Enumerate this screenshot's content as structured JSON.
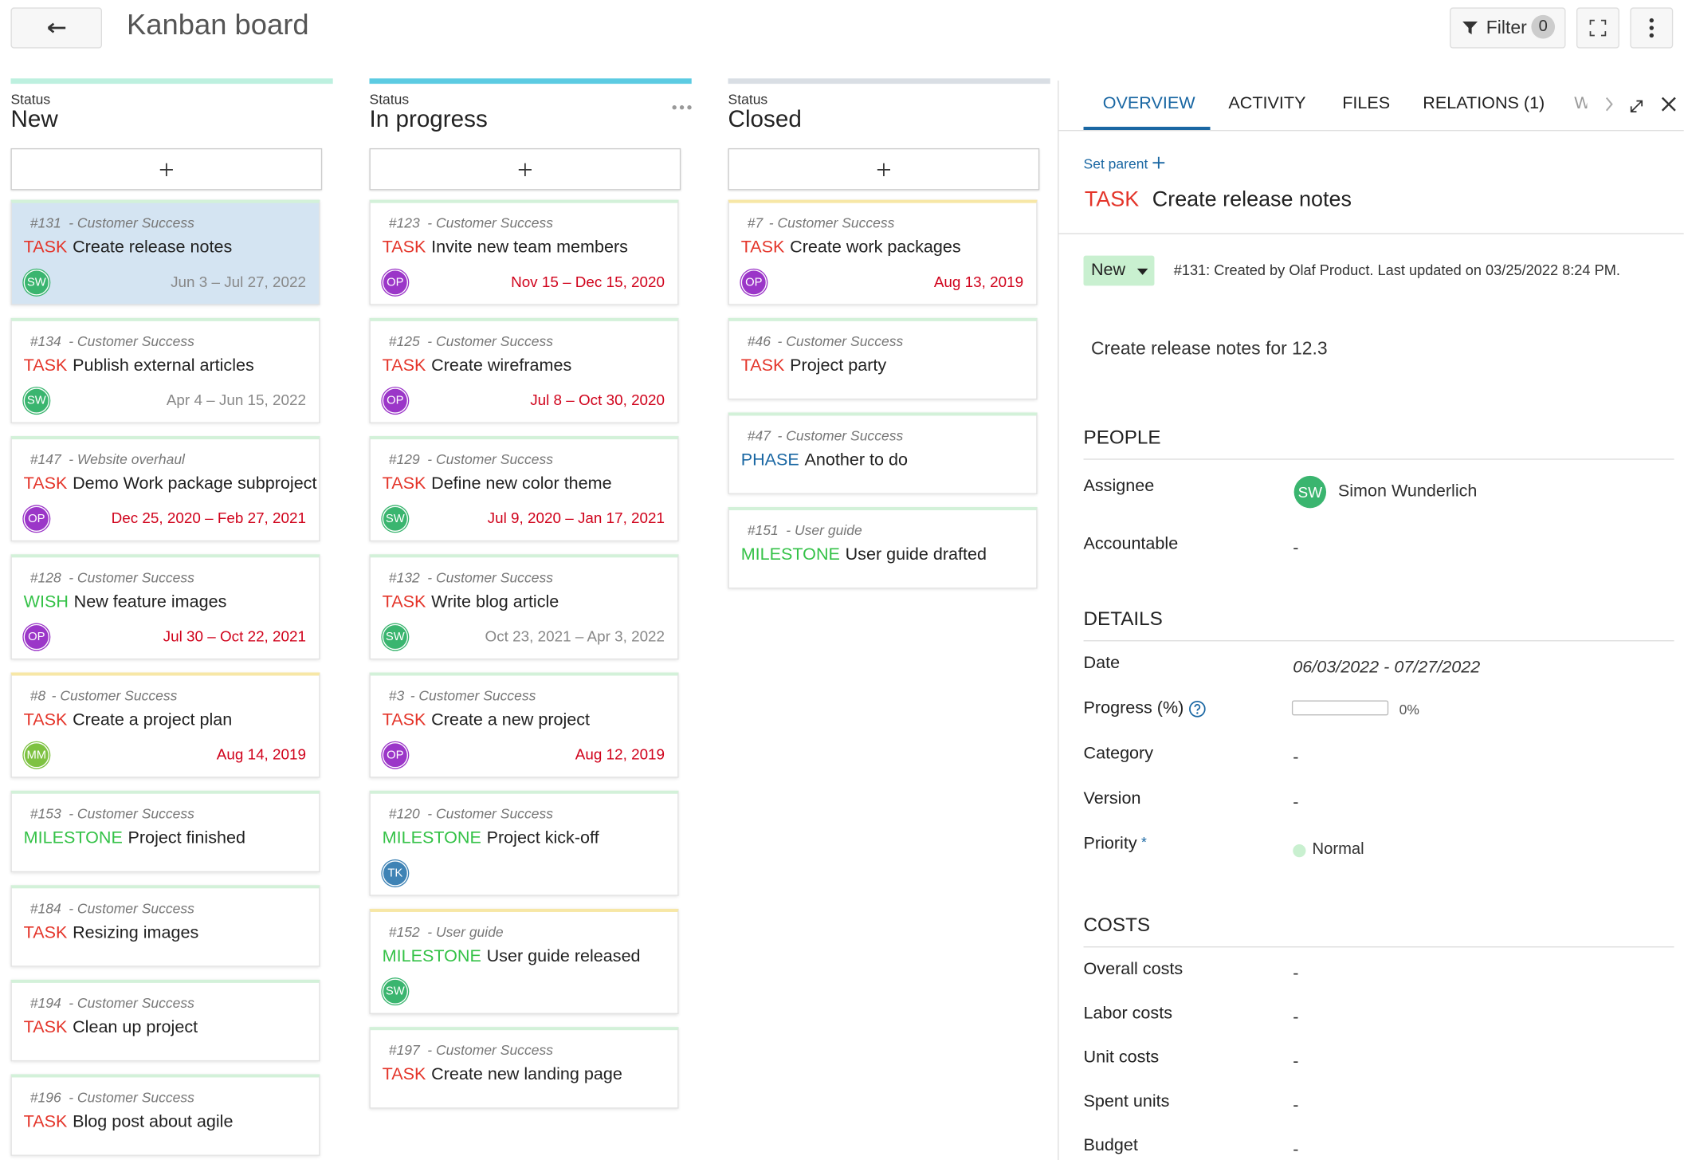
{
  "header": {
    "title": "Kanban board",
    "filter": "Filter",
    "filter_count": "0"
  },
  "columns": [
    {
      "label": "Status",
      "name": "New",
      "color": "#bdf0df",
      "cards": [
        {
          "id": "#131",
          "project": "- Customer Success",
          "type": "TASK",
          "subject": "Create release notes",
          "avatar": "SW",
          "dates": "Jun 3 – Jul 27, 2022",
          "overdue": false,
          "selected": true,
          "accent": "#d3f1d9"
        },
        {
          "id": "#134",
          "project": "- Customer Success",
          "type": "TASK",
          "subject": "Publish external articles",
          "avatar": "SW",
          "dates": "Apr 4 – Jun 15, 2022",
          "overdue": false,
          "accent": "#d3f1d9"
        },
        {
          "id": "#147",
          "project": "- Website overhaul",
          "type": "TASK",
          "subject": "Demo Work package subproject",
          "avatar": "OP",
          "dates": "Dec 25, 2020 – Feb 27, 2021",
          "overdue": true,
          "accent": "#d3f1d9"
        },
        {
          "id": "#128",
          "project": "- Customer Success",
          "type": "WISH",
          "subject": "New feature images",
          "avatar": "OP",
          "dates": "Jul 30 – Oct 22, 2021",
          "overdue": true,
          "accent": "#d3f1d9"
        },
        {
          "id": "#8",
          "project": "- Customer Success",
          "type": "TASK",
          "subject": "Create a project plan",
          "avatar": "MM",
          "dates": "Aug 14, 2019",
          "overdue": true,
          "accent": "#f7e7a6"
        },
        {
          "id": "#153",
          "project": "- Customer Success",
          "type": "MILESTONE",
          "subject": "Project finished",
          "accent": "#d3f1d9"
        },
        {
          "id": "#184",
          "project": "- Customer Success",
          "type": "TASK",
          "subject": "Resizing images",
          "accent": "#d3f1d9"
        },
        {
          "id": "#194",
          "project": "- Customer Success",
          "type": "TASK",
          "subject": "Clean up project",
          "accent": "#d3f1d9"
        },
        {
          "id": "#196",
          "project": "- Customer Success",
          "type": "TASK",
          "subject": "Blog post about agile",
          "accent": "#d3f1d9"
        }
      ]
    },
    {
      "label": "Status",
      "name": "In progress",
      "color": "#5ccbe2",
      "cards": [
        {
          "id": "#123",
          "project": "- Customer Success",
          "type": "TASK",
          "subject": "Invite new team members",
          "avatar": "OP",
          "dates": "Nov 15 – Dec 15, 2020",
          "overdue": true,
          "accent": "#d3f1d9"
        },
        {
          "id": "#125",
          "project": "- Customer Success",
          "type": "TASK",
          "subject": "Create wireframes",
          "avatar": "OP",
          "dates": "Jul 8 – Oct 30, 2020",
          "overdue": true,
          "accent": "#d3f1d9"
        },
        {
          "id": "#129",
          "project": "- Customer Success",
          "type": "TASK",
          "subject": "Define new color theme",
          "avatar": "SW",
          "dates": "Jul 9, 2020 – Jan 17, 2021",
          "overdue": true,
          "accent": "#d3f1d9"
        },
        {
          "id": "#132",
          "project": "- Customer Success",
          "type": "TASK",
          "subject": "Write blog article",
          "avatar": "SW",
          "dates": "Oct 23, 2021 – Apr 3, 2022",
          "overdue": false,
          "accent": "#d3f1d9"
        },
        {
          "id": "#3",
          "project": "- Customer Success",
          "type": "TASK",
          "subject": "Create a new project",
          "avatar": "OP",
          "dates": "Aug 12, 2019",
          "overdue": true,
          "accent": "#d3f1d9"
        },
        {
          "id": "#120",
          "project": "- Customer Success",
          "type": "MILESTONE",
          "subject": "Project kick-off",
          "avatar": "TK",
          "accent": "#d3f1d9"
        },
        {
          "id": "#152",
          "project": "- User guide",
          "type": "MILESTONE",
          "subject": "User guide released",
          "avatar": "SW",
          "accent": "#f7e7a6"
        },
        {
          "id": "#197",
          "project": "- Customer Success",
          "type": "TASK",
          "subject": "Create new landing page",
          "accent": "#d3f1d9"
        }
      ]
    },
    {
      "label": "Status",
      "name": "Closed",
      "color": "#d9dee4",
      "cards": [
        {
          "id": "#7",
          "project": "- Customer Success",
          "type": "TASK",
          "subject": "Create work packages",
          "avatar": "OP",
          "dates": "Aug 13, 2019",
          "overdue": true,
          "accent": "#f7e7a6"
        },
        {
          "id": "#46",
          "project": "- Customer Success",
          "type": "TASK",
          "subject": "Project party",
          "accent": "#d3f1d9"
        },
        {
          "id": "#47",
          "project": "- Customer Success",
          "type": "PHASE",
          "subject": "Another to do",
          "accent": "#d3f1d9"
        },
        {
          "id": "#151",
          "project": "- User guide",
          "type": "MILESTONE",
          "subject": "User guide drafted",
          "accent": "#d3f1d9"
        }
      ]
    }
  ],
  "details": {
    "tabs": [
      "OVERVIEW",
      "ACTIVITY",
      "FILES",
      "RELATIONS (1)",
      "W"
    ],
    "set_parent": "Set parent",
    "type": "TASK",
    "subject": "Create release notes",
    "status": "New",
    "meta": "#131: Created by Olaf Product. Last updated on 03/25/2022 8:24 PM.",
    "description": "Create release notes for 12.3",
    "sections": [
      {
        "title": "PEOPLE",
        "fields": [
          {
            "label": "Assignee",
            "avatar": "SW",
            "value": "Simon Wunderlich"
          },
          {
            "label": "Accountable",
            "value": "-"
          }
        ]
      },
      {
        "title": "DETAILS",
        "fields": [
          {
            "label": "Date",
            "value": "06/03/2022 - 07/27/2022"
          },
          {
            "label": "Progress (%)",
            "progress": {
              "value": 0,
              "label": "0%"
            }
          },
          {
            "label": "Category",
            "value": "-"
          },
          {
            "label": "Version",
            "value": "-"
          },
          {
            "label": "Priority",
            "required": "*",
            "value": "Normal"
          }
        ]
      },
      {
        "title": "COSTS",
        "fields": [
          {
            "label": "Overall costs",
            "value": "-"
          },
          {
            "label": "Labor costs",
            "value": "-"
          },
          {
            "label": "Unit costs",
            "value": "-"
          },
          {
            "label": "Spent units",
            "value": "-"
          },
          {
            "label": "Budget",
            "value": "-"
          }
        ]
      }
    ]
  }
}
